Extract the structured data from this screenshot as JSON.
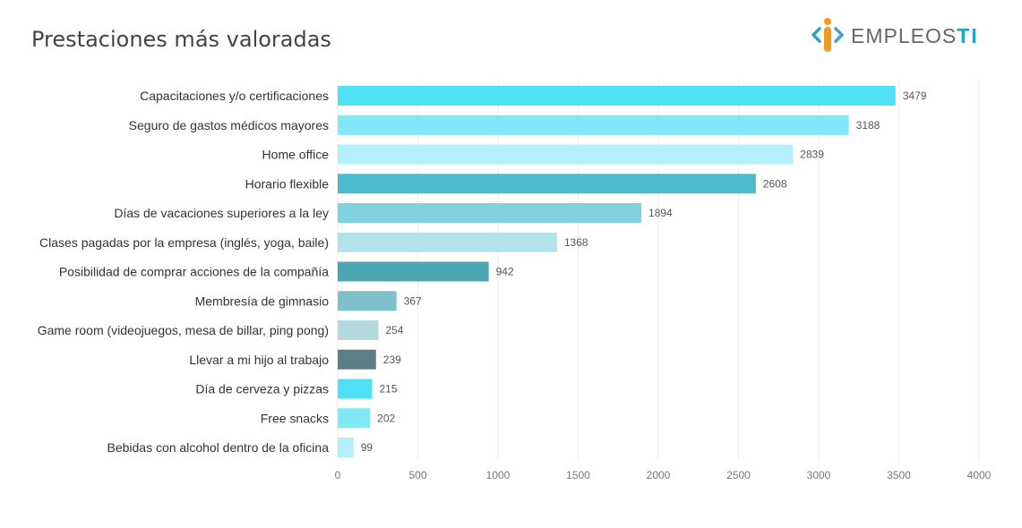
{
  "page": {
    "title": "Prestaciones más valoradas"
  },
  "logo": {
    "text_main": "EMPLEOS",
    "text_accent": "TI",
    "icon": "info-person-icon",
    "colors": {
      "left": "#2aa3c4",
      "body": "#f39a1e",
      "right": "#4a9bd4"
    }
  },
  "chart_data": {
    "type": "bar",
    "orientation": "horizontal",
    "title": "Prestaciones más valoradas",
    "categories": [
      "Capacitaciones y/o certificaciones",
      "Seguro de gastos médicos mayores",
      "Home office",
      "Horario flexible",
      "Días de vacaciones superiores a la ley",
      "Clases pagadas por la empresa (inglés, yoga, baile)",
      "Posibilidad de comprar acciones de la compañía",
      "Membresía de gimnasio",
      "Game room (videojuegos, mesa de billar, ping pong)",
      "Llevar a mi hijo al trabajo",
      "Día de cerveza y pizzas",
      "Free snacks",
      "Bebidas con alcohol dentro de la oficina"
    ],
    "values": [
      3479,
      3188,
      2839,
      2608,
      1894,
      1368,
      942,
      367,
      254,
      239,
      215,
      202,
      99
    ],
    "colors": [
      "#4fe0f5",
      "#80e8f7",
      "#b3f0f9",
      "#4cbccc",
      "#80d2de",
      "#b3e3ea",
      "#4ca5b2",
      "#80c0ca",
      "#b3d8de",
      "#5c7f86",
      "#4fe0f5",
      "#80e8f7",
      "#b3f0f9"
    ],
    "xlim": [
      0,
      4000
    ],
    "xticks": [
      0,
      500,
      1000,
      1500,
      2000,
      2500,
      3000,
      3500,
      4000
    ],
    "xlabel": "",
    "ylabel": "",
    "grid": true,
    "legend": "none"
  }
}
